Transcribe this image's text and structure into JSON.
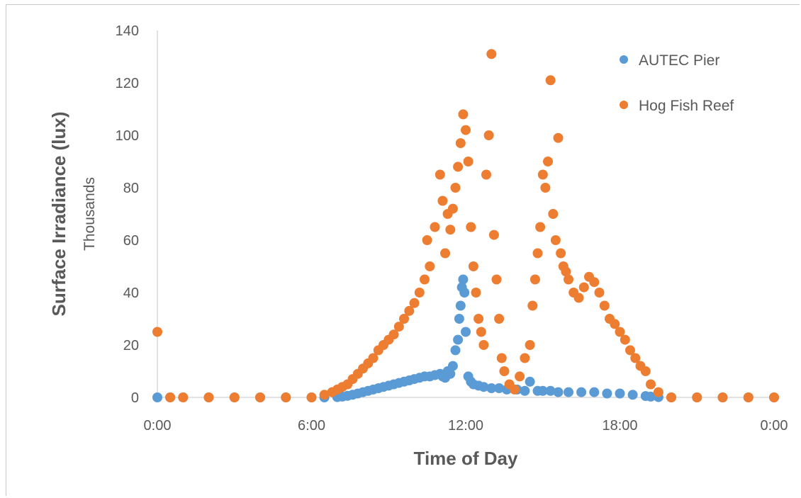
{
  "chart_data": {
    "type": "scatter",
    "xlabel": "Time of Day",
    "ylabel": "Surface Irradiance (lux)",
    "y_unit_label": "Thousands",
    "x_ticks": [
      "0:00",
      "6:00",
      "12:00",
      "18:00",
      "0:00"
    ],
    "x_tick_hours": [
      0,
      6,
      12,
      18,
      24
    ],
    "xlim_hours": [
      0,
      24
    ],
    "y_ticks": [
      0,
      20,
      40,
      60,
      80,
      100,
      120,
      140
    ],
    "ylim": [
      0,
      140
    ],
    "grid": false,
    "legend_position": "top-right",
    "series": [
      {
        "name": "AUTEC Pier",
        "color": "#5b9bd5",
        "x": [
          0,
          0.5,
          1,
          2,
          3,
          4,
          5,
          6,
          6.5,
          7,
          7.2,
          7.4,
          7.6,
          7.8,
          8,
          8.2,
          8.4,
          8.6,
          8.8,
          9,
          9.2,
          9.4,
          9.6,
          9.8,
          10,
          10.2,
          10.4,
          10.6,
          10.8,
          11,
          11.1,
          11.2,
          11.3,
          11.4,
          11.5,
          11.6,
          11.7,
          11.75,
          11.8,
          11.85,
          11.9,
          11.95,
          12,
          12.1,
          12.2,
          12.3,
          12.5,
          12.7,
          13,
          13.3,
          13.6,
          14,
          14.3,
          14.5,
          14.8,
          15,
          15.3,
          15.6,
          16,
          16.5,
          17,
          17.5,
          18,
          18.5,
          19,
          19.2,
          19.5,
          20,
          21,
          22,
          23,
          24
        ],
        "y": [
          0,
          0,
          0,
          0,
          0,
          0,
          0,
          0,
          0,
          0.1,
          0.3,
          0.6,
          1,
          1.5,
          2,
          2.5,
          3,
          3.5,
          4,
          4.5,
          5,
          5.5,
          6,
          6.5,
          7,
          7.5,
          8,
          8,
          8.5,
          9,
          8,
          7.5,
          10,
          9,
          12,
          18,
          22,
          30,
          35,
          42,
          45,
          40,
          25,
          8,
          6,
          5,
          4.5,
          4,
          3.5,
          3.5,
          3,
          3,
          2.5,
          6,
          2.5,
          2.5,
          2.5,
          2,
          2,
          2,
          2,
          1.5,
          1.5,
          1,
          0.5,
          0.3,
          0.1,
          0,
          0,
          0,
          0,
          0
        ]
      },
      {
        "name": "Hog Fish Reef",
        "color": "#ed7d31",
        "x": [
          0,
          0.5,
          1,
          2,
          3,
          4,
          5,
          6,
          6.5,
          6.8,
          7,
          7.2,
          7.4,
          7.6,
          7.8,
          8,
          8.2,
          8.4,
          8.6,
          8.8,
          9,
          9.2,
          9.4,
          9.6,
          9.8,
          10,
          10.2,
          10.4,
          10.5,
          10.6,
          10.8,
          11,
          11.1,
          11.2,
          11.3,
          11.4,
          11.5,
          11.6,
          11.7,
          11.8,
          11.9,
          12,
          12.1,
          12.2,
          12.3,
          12.4,
          12.5,
          12.6,
          12.7,
          12.8,
          12.9,
          13,
          13.1,
          13.2,
          13.3,
          13.4,
          13.5,
          13.7,
          13.9,
          14.1,
          14.3,
          14.5,
          14.6,
          14.7,
          14.8,
          14.9,
          15,
          15.1,
          15.2,
          15.3,
          15.4,
          15.5,
          15.6,
          15.7,
          15.8,
          15.9,
          16,
          16.2,
          16.4,
          16.6,
          16.8,
          17,
          17.2,
          17.4,
          17.6,
          17.8,
          18,
          18.2,
          18.4,
          18.6,
          18.8,
          19,
          19.2,
          19.5,
          20,
          21,
          22,
          23,
          24
        ],
        "y": [
          25,
          0,
          0,
          0,
          0,
          0,
          0,
          0,
          1,
          2,
          3,
          4,
          5,
          7,
          9,
          11,
          13,
          15,
          18,
          20,
          22,
          24,
          27,
          30,
          33,
          36,
          40,
          45,
          60,
          50,
          65,
          85,
          75,
          55,
          70,
          64,
          72,
          80,
          88,
          97,
          108,
          102,
          90,
          65,
          50,
          40,
          30,
          25,
          20,
          85,
          100,
          131,
          62,
          45,
          30,
          15,
          10,
          5,
          3,
          8,
          15,
          20,
          35,
          45,
          55,
          65,
          85,
          80,
          90,
          121,
          70,
          60,
          99,
          55,
          50,
          48,
          45,
          40,
          38,
          42,
          46,
          44,
          40,
          35,
          30,
          28,
          25,
          22,
          18,
          15,
          12,
          10,
          5,
          2,
          0,
          0,
          0,
          0,
          0
        ]
      }
    ]
  }
}
